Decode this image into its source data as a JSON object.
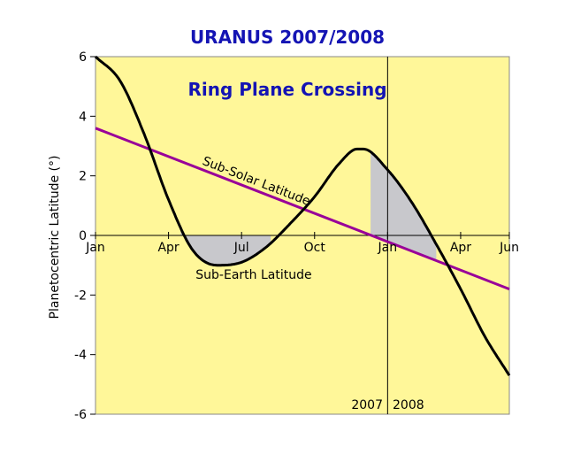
{
  "chart_data": {
    "type": "line",
    "title": "URANUS 2007/2008",
    "subtitle": "Ring Plane Crossing",
    "ylabel": "Planetocentric Latitude (°)",
    "xlabel": "",
    "ylim": [
      -6,
      6
    ],
    "xlim": [
      0,
      17
    ],
    "x_unit": "months since Jan 2007",
    "yticks": [
      "6",
      "4",
      "2",
      "0",
      "-2",
      "-4",
      "-6"
    ],
    "xticks": [
      {
        "x": 0,
        "label": "Jan"
      },
      {
        "x": 3,
        "label": "Apr"
      },
      {
        "x": 6,
        "label": "Jul"
      },
      {
        "x": 9,
        "label": "Oct"
      },
      {
        "x": 12,
        "label": "Jan"
      },
      {
        "x": 15,
        "label": "Apr"
      },
      {
        "x": 17,
        "label": "Jun"
      }
    ],
    "year_divider": {
      "x": 12,
      "left_label": "2007",
      "right_label": "2008"
    },
    "series": [
      {
        "name": "Sub-Earth Latitude",
        "color": "#000000",
        "x": [
          0,
          1,
          2,
          3,
          4,
          5,
          6,
          7,
          8,
          9,
          10,
          10.75,
          11,
          12,
          13,
          14,
          15,
          16,
          17
        ],
        "values": [
          6.0,
          5.2,
          3.4,
          1.2,
          -0.5,
          -1.0,
          -0.9,
          -0.4,
          0.4,
          1.3,
          2.4,
          2.9,
          2.9,
          2.2,
          1.1,
          -0.3,
          -1.8,
          -3.4,
          -4.7
        ]
      },
      {
        "name": "Sub-Solar Latitude",
        "color": "#990099",
        "x": [
          0,
          17
        ],
        "values": [
          3.6,
          -1.8
        ]
      }
    ],
    "shaded_regions": [
      {
        "x_start": 3.5,
        "x_end": 7.2,
        "between": "Sub-Earth Latitude and 0"
      },
      {
        "x_start": 11.3,
        "x_end": 14.0,
        "between": "Sub-Earth Latitude and Sub-Solar Latitude"
      }
    ],
    "colors": {
      "plot_bg": "#fff799",
      "shade": "#c8c8cc",
      "title": "#1414b4"
    }
  }
}
